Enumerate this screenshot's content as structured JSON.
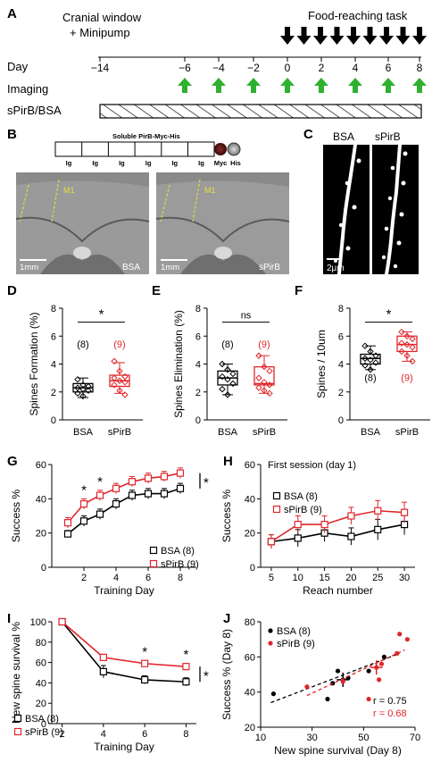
{
  "colors": {
    "control": "#000000",
    "treatment": "#e0262b",
    "arrow_green": "#2fb12f",
    "micro_bg": "#8c8c8c"
  },
  "panelA": {
    "label": "A",
    "cranial_line1": "Cranial window",
    "cranial_line2": "+ Minipump",
    "task": "Food-reaching task",
    "row_day": "Day",
    "row_imaging": "Imaging",
    "row_treatment": "sPirB/BSA",
    "days": [
      "−14",
      "−6",
      "−4",
      "−2",
      "0",
      "2",
      "4",
      "6",
      "8"
    ],
    "imaging_days": [
      "−6",
      "−4",
      "−2",
      "0",
      "2",
      "4",
      "6",
      "8"
    ],
    "task_days": [
      "0",
      "1",
      "2",
      "3",
      "4",
      "5",
      "6",
      "7",
      "8"
    ]
  },
  "panelB": {
    "label": "B",
    "construct_title": "Soluble PirB-Myc-His",
    "domains": [
      "Ig",
      "Ig",
      "Ig",
      "Ig",
      "Ig",
      "Ig"
    ],
    "tag1": "Myc",
    "tag2": "His",
    "left_region": "M1",
    "left_scale": "1mm",
    "left_cond": "BSA",
    "right_region": "M1",
    "right_scale": "1mm",
    "right_cond": "sPirB"
  },
  "panelC": {
    "label": "C",
    "cond1": "BSA",
    "cond2": "sPirB",
    "scale": "2μm"
  },
  "panelD": {
    "label": "D",
    "ylabel": "Spines Formation (%)",
    "ylim": [
      0,
      8
    ],
    "ticks": [
      "0",
      "2",
      "4",
      "6",
      "8"
    ],
    "categories": [
      "BSA",
      "sPirB"
    ],
    "n": [
      "(8)",
      "(9)"
    ],
    "sig": "*",
    "box": [
      {
        "q1": 2.0,
        "med": 2.3,
        "q3": 2.6,
        "lo": 1.6,
        "hi": 3.0
      },
      {
        "q1": 2.4,
        "med": 2.8,
        "q3": 3.2,
        "lo": 1.9,
        "hi": 4.1
      }
    ],
    "points": [
      [
        2.9,
        2.5,
        2.4,
        2.3,
        2.2,
        2.1,
        1.9,
        1.7
      ],
      [
        4.2,
        3.5,
        3.1,
        3.0,
        2.8,
        2.7,
        2.5,
        2.1,
        1.8
      ]
    ]
  },
  "panelE": {
    "label": "E",
    "ylabel": "Spines Elimination (%)",
    "ylim": [
      0,
      8
    ],
    "ticks": [
      "0",
      "2",
      "4",
      "6",
      "8"
    ],
    "categories": [
      "BSA",
      "sPirB"
    ],
    "n": [
      "(8)",
      "(9)"
    ],
    "sig": "ns",
    "box": [
      {
        "q1": 2.5,
        "med": 3.0,
        "q3": 3.5,
        "lo": 1.8,
        "hi": 4.0
      },
      {
        "q1": 2.5,
        "med": 2.6,
        "q3": 3.8,
        "lo": 1.9,
        "hi": 4.6
      }
    ],
    "points": [
      [
        4.0,
        3.6,
        3.3,
        3.1,
        2.9,
        2.6,
        2.2,
        1.8
      ],
      [
        4.6,
        3.8,
        3.5,
        3.0,
        2.7,
        2.5,
        2.3,
        2.1,
        1.9
      ]
    ]
  },
  "panelF": {
    "label": "F",
    "ylabel": "Spines / 10um",
    "ylim": [
      0,
      8
    ],
    "ticks": [
      "0",
      "2",
      "4",
      "6",
      "8"
    ],
    "categories": [
      "BSA",
      "sPirB"
    ],
    "n": [
      "(8)",
      "(9)"
    ],
    "sig": "*",
    "box": [
      {
        "q1": 4.0,
        "med": 4.4,
        "q3": 4.7,
        "lo": 3.6,
        "hi": 5.3
      },
      {
        "q1": 4.9,
        "med": 5.4,
        "q3": 6.0,
        "lo": 4.2,
        "hi": 6.3
      }
    ],
    "points": [
      [
        5.3,
        4.9,
        4.6,
        4.4,
        4.3,
        4.1,
        3.9,
        3.6
      ],
      [
        6.3,
        6.0,
        5.8,
        5.5,
        5.4,
        5.2,
        4.9,
        4.6,
        4.2
      ]
    ]
  },
  "chart_data": [
    {
      "type": "line",
      "panel": "G",
      "xlabel": "Training Day",
      "ylabel": "Success %",
      "xlim": [
        0,
        9
      ],
      "ylim": [
        0,
        60
      ],
      "xticks": [
        "2",
        "4",
        "6",
        "8"
      ],
      "yticks": [
        "0",
        "20",
        "40",
        "60"
      ],
      "x": [
        1,
        2,
        3,
        4,
        5,
        6,
        7,
        8
      ],
      "series": [
        {
          "name": "BSA (8)",
          "values": [
            19.5,
            27,
            31,
            37,
            42,
            43,
            43,
            46
          ],
          "err": [
            2,
            3,
            3,
            3,
            3,
            3,
            3,
            3
          ]
        },
        {
          "name": "sPirB (9)",
          "values": [
            26,
            37,
            42,
            46,
            50,
            52,
            53,
            55
          ],
          "err": [
            3,
            3,
            3,
            3,
            3,
            3,
            3,
            3
          ]
        }
      ],
      "sig_marks": [
        {
          "x": 2,
          "text": "*"
        },
        {
          "x": 3,
          "text": "*"
        }
      ],
      "bracket_sig": "*"
    },
    {
      "type": "line",
      "panel": "H",
      "title": "First session (day 1)",
      "xlabel": "Reach number",
      "ylabel": "Success %",
      "xlim": [
        3,
        32
      ],
      "ylim": [
        0,
        60
      ],
      "xticks": [
        "5",
        "10",
        "15",
        "20",
        "25",
        "30"
      ],
      "yticks": [
        "0",
        "20",
        "40",
        "60"
      ],
      "x": [
        5,
        10,
        15,
        20,
        25,
        30
      ],
      "series": [
        {
          "name": "BSA (8)",
          "values": [
            15,
            17,
            20,
            18,
            22,
            25
          ],
          "err": [
            4,
            5,
            5,
            5,
            6,
            6
          ]
        },
        {
          "name": "sPirB (9)",
          "values": [
            15,
            25,
            25,
            30,
            33,
            32
          ],
          "err": [
            4,
            5,
            5,
            5,
            6,
            6
          ]
        }
      ]
    },
    {
      "type": "line",
      "panel": "I",
      "xlabel": "Training Day",
      "ylabel": "New spine survival %",
      "xlim": [
        1.5,
        8.5
      ],
      "ylim": [
        0,
        100
      ],
      "xticks": [
        "2",
        "4",
        "6",
        "8"
      ],
      "yticks": [
        "0",
        "20",
        "40",
        "60",
        "80",
        "100"
      ],
      "x": [
        2,
        4,
        6,
        8
      ],
      "series": [
        {
          "name": "BSA (8)",
          "values": [
            100,
            51,
            43,
            41
          ],
          "err": [
            0,
            6,
            4,
            4
          ]
        },
        {
          "name": "sPirB (9)",
          "values": [
            100,
            65,
            59,
            56
          ],
          "err": [
            0,
            3,
            3,
            3
          ]
        }
      ],
      "sig_marks": [
        {
          "x": 6,
          "text": "*"
        },
        {
          "x": 8,
          "text": "*"
        }
      ],
      "bracket_sig": "*"
    },
    {
      "type": "scatter",
      "panel": "J",
      "xlabel": "New spine survival (Day 8)",
      "ylabel": "Success % (Day 8)",
      "xlim": [
        10,
        70
      ],
      "ylim": [
        20,
        80
      ],
      "xticks": [
        "10",
        "30",
        "50",
        "70"
      ],
      "yticks": [
        "20",
        "40",
        "60",
        "80"
      ],
      "series": [
        {
          "name": "BSA (8)",
          "points": [
            [
              15,
              39
            ],
            [
              38,
              45
            ],
            [
              40,
              52
            ],
            [
              44,
              48
            ],
            [
              42,
              47
            ],
            [
              36,
              36
            ],
            [
              52,
              52
            ],
            [
              58,
              60
            ]
          ],
          "mean": [
            42,
            47
          ],
          "r": "r = 0.75"
        },
        {
          "name": "sPirB (9)",
          "points": [
            [
              28,
              43
            ],
            [
              42,
              46
            ],
            [
              55,
              54
            ],
            [
              56,
              47
            ],
            [
              63,
              62
            ],
            [
              64,
              73
            ],
            [
              67,
              70
            ],
            [
              52,
              36
            ],
            [
              57,
              56
            ]
          ],
          "mean": [
            55,
            54
          ],
          "r": "r = 0.68"
        }
      ]
    }
  ]
}
